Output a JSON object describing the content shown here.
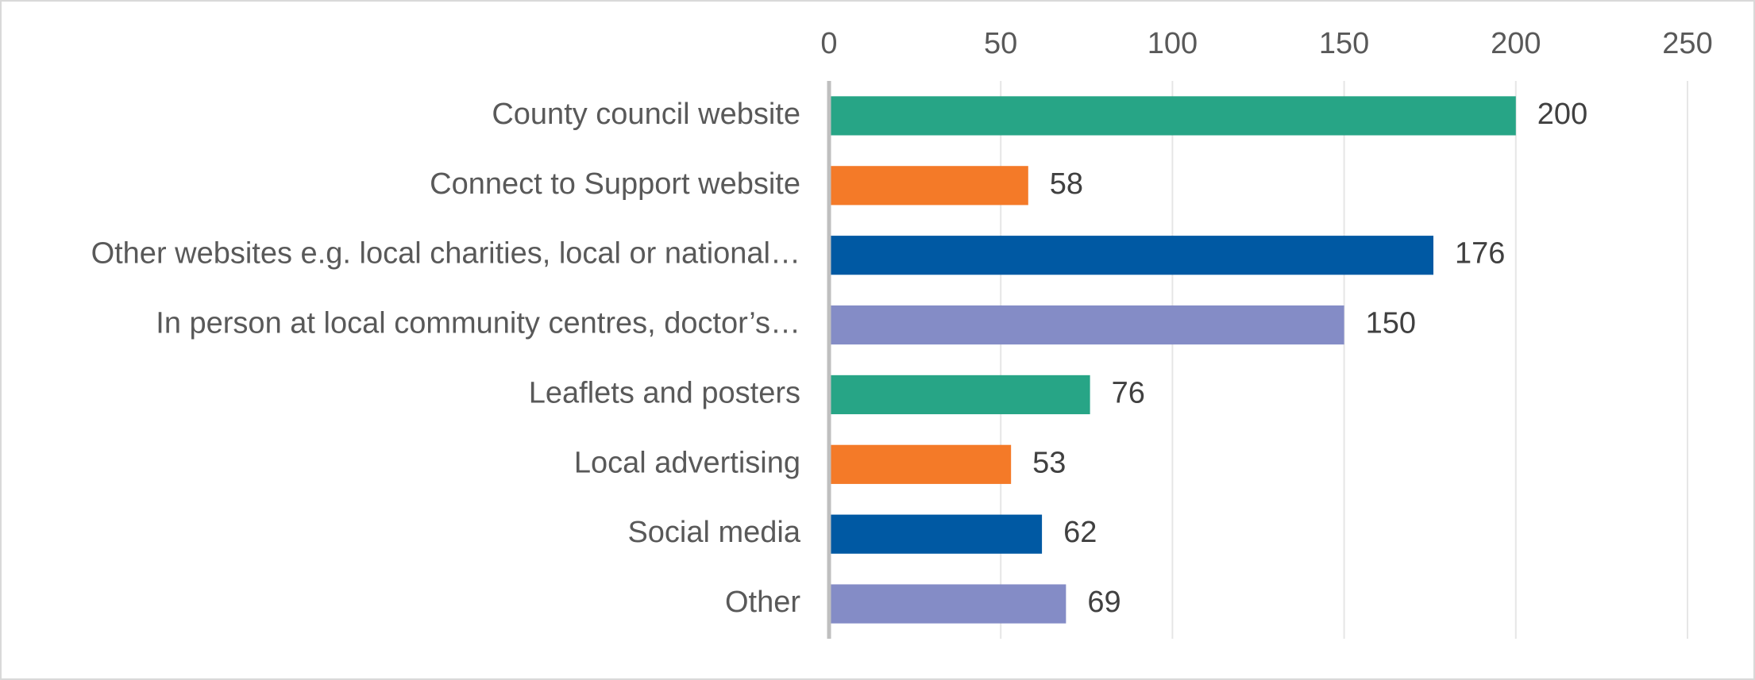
{
  "chart_data": {
    "type": "bar",
    "orientation": "horizontal",
    "categories": [
      "County council website",
      "Connect to Support website",
      "Other websites e.g. local charities, local or national…",
      "In person at local community centres, doctor’s…",
      "Leaflets and posters",
      "Local advertising",
      "Social media",
      "Other"
    ],
    "values": [
      200,
      58,
      176,
      150,
      76,
      53,
      62,
      69
    ],
    "bar_colors": [
      "#27a586",
      "#f47a28",
      "#0059a3",
      "#848cc6",
      "#27a586",
      "#f47a28",
      "#0059a3",
      "#848cc6"
    ],
    "xlim": [
      0,
      250
    ],
    "xticks": [
      0,
      50,
      100,
      150,
      200,
      250
    ],
    "xtick_labels": [
      "0",
      "50",
      "100",
      "150",
      "200",
      "250"
    ],
    "x_axis_position": "top",
    "data_labels": true,
    "grid": true,
    "title": "",
    "xlabel": "",
    "ylabel": ""
  }
}
